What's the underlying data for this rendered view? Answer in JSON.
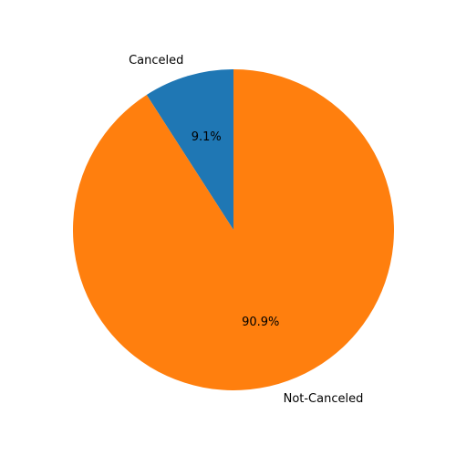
{
  "chart_data": {
    "type": "pie",
    "title": "",
    "slices": [
      {
        "label": "Canceled",
        "value": 9.1,
        "percent_label": "9.1%",
        "color": "#1f77b4"
      },
      {
        "label": "Not-Canceled",
        "value": 90.9,
        "percent_label": "90.9%",
        "color": "#ff7f0e"
      }
    ],
    "start_angle_deg": 90,
    "direction": "counterclockwise",
    "legend": "none",
    "grid": false
  }
}
